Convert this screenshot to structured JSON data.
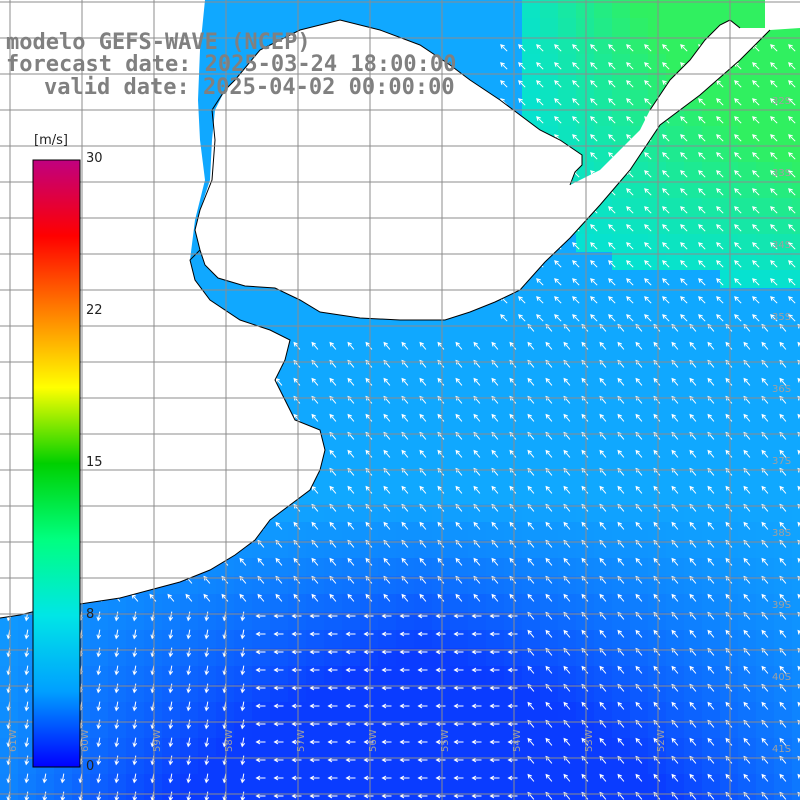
{
  "title": {
    "model": "modelo GEFS-WAVE (NCEP)",
    "forecast": "forecast date: 2025-03-24 18:00:00",
    "valid": "valid date: 2025-04-02 00:00:00"
  },
  "colorbar": {
    "unit": "[m/s]",
    "ticks": [
      "30",
      "22",
      "15",
      "8",
      "0"
    ],
    "tick_values": [
      30,
      22,
      15,
      8,
      0
    ],
    "colors": [
      "#0000ff",
      "#00a0ff",
      "#00e6e6",
      "#00ff80",
      "#00d000",
      "#ffff00",
      "#ff8000",
      "#ff0000",
      "#c00080"
    ]
  },
  "lon_labels": [
    "61W",
    "60W",
    "59W",
    "58W",
    "57W",
    "56W",
    "55W",
    "54W",
    "53W",
    "52W"
  ],
  "lat_labels": [
    "32S",
    "33S",
    "34S",
    "35S",
    "36S",
    "37S",
    "38S",
    "39S",
    "40S",
    "41S"
  ],
  "colors": {
    "land": "#ffffff",
    "grid": "#8c8c8c",
    "coast": "#000000",
    "arrow": "#ffffff",
    "title": "#808080"
  }
}
